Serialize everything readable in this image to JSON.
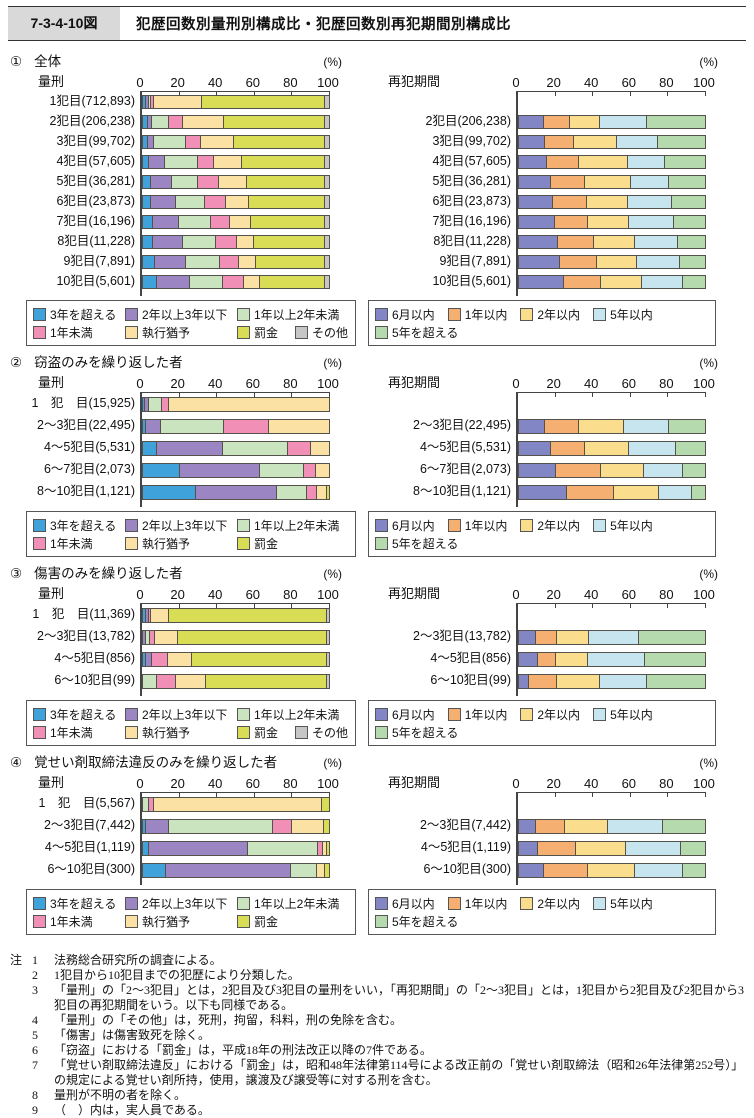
{
  "header": {
    "fig_no": "7-3-4-10図",
    "title": "犯歴回数別量刑別構成比・犯歴回数別再犯期間別構成比"
  },
  "palette": {
    "segment_border": "#54524a",
    "axis": "#444444"
  },
  "chart_data": [
    {
      "section": "①",
      "section_title": "全体",
      "panel": "量刑",
      "type": "bar",
      "stacked": true,
      "orientation": "horizontal",
      "unit": "(%)",
      "xlim": [
        0,
        100
      ],
      "ticks": [
        "0",
        "20",
        "40",
        "60",
        "80",
        "100"
      ],
      "lead_blank_rows": 0,
      "series": [
        "3年を超える",
        "2年以上3年以下",
        "1年以上2年未満",
        "1年未満",
        "執行猶予",
        "罰金",
        "その他"
      ],
      "colors": [
        "#3fa2db",
        "#9b85c2",
        "#cbe4c0",
        "#f18fb7",
        "#fbe1a3",
        "#d8dd55",
        "#c6c6c6"
      ],
      "categories": [
        {
          "label": "1犯目",
          "count": "(712,893)",
          "values": [
            1,
            1,
            1,
            1,
            26,
            68,
            2
          ]
        },
        {
          "label": "2犯目",
          "count": "(206,238)",
          "values": [
            2,
            2,
            9,
            7,
            22,
            56,
            2
          ]
        },
        {
          "label": "3犯目",
          "count": "(99,702)",
          "values": [
            2,
            3,
            17,
            8,
            18,
            50,
            2
          ]
        },
        {
          "label": "4犯目",
          "count": "(57,605)",
          "values": [
            3,
            8,
            18,
            8,
            15,
            46,
            2
          ]
        },
        {
          "label": "5犯目",
          "count": "(36,281)",
          "values": [
            4,
            11,
            14,
            11,
            15,
            43,
            2
          ]
        },
        {
          "label": "6犯目",
          "count": "(23,873)",
          "values": [
            4,
            13,
            16,
            11,
            12,
            42,
            2
          ]
        },
        {
          "label": "7犯目",
          "count": "(16,196)",
          "values": [
            5,
            14,
            17,
            10,
            11,
            41,
            2
          ]
        },
        {
          "label": "8犯目",
          "count": "(11,228)",
          "values": [
            5,
            16,
            18,
            11,
            9,
            39,
            2
          ]
        },
        {
          "label": "9犯目",
          "count": "(7,891)",
          "values": [
            6,
            17,
            18,
            10,
            9,
            38,
            2
          ]
        },
        {
          "label": "10犯目",
          "count": "(5,601)",
          "values": [
            7,
            18,
            18,
            11,
            8,
            36,
            2
          ]
        }
      ]
    },
    {
      "section": "①",
      "section_title": "全体",
      "panel": "再犯期間",
      "type": "bar",
      "stacked": true,
      "orientation": "horizontal",
      "unit": "(%)",
      "xlim": [
        0,
        100
      ],
      "ticks": [
        "0",
        "20",
        "40",
        "60",
        "80",
        "100"
      ],
      "lead_blank_rows": 1,
      "series": [
        "6月以内",
        "1年以内",
        "2年以内",
        "5年以内",
        "5年を超える"
      ],
      "colors": [
        "#8286c5",
        "#f4af71",
        "#fbdd8e",
        "#c7e5ef",
        "#b5daad"
      ],
      "categories": [
        {
          "label": "2犯目",
          "count": "(206,238)",
          "values": [
            13,
            14,
            16,
            25,
            32
          ]
        },
        {
          "label": "3犯目",
          "count": "(99,702)",
          "values": [
            14,
            15,
            23,
            22,
            26
          ]
        },
        {
          "label": "4犯目",
          "count": "(57,605)",
          "values": [
            15,
            17,
            26,
            20,
            22
          ]
        },
        {
          "label": "5犯目",
          "count": "(36,281)",
          "values": [
            17,
            18,
            25,
            20,
            20
          ]
        },
        {
          "label": "6犯目",
          "count": "(23,873)",
          "values": [
            18,
            18,
            22,
            24,
            18
          ]
        },
        {
          "label": "7犯目",
          "count": "(16,196)",
          "values": [
            19,
            18,
            22,
            24,
            17
          ]
        },
        {
          "label": "8犯目",
          "count": "(11,228)",
          "values": [
            21,
            19,
            22,
            23,
            15
          ]
        },
        {
          "label": "9犯目",
          "count": "(7,891)",
          "values": [
            22,
            20,
            21,
            23,
            14
          ]
        },
        {
          "label": "10犯目",
          "count": "(5,601)",
          "values": [
            24,
            20,
            22,
            22,
            12
          ]
        }
      ]
    },
    {
      "section": "②",
      "section_title": "窃盗のみを繰り返した者",
      "panel": "量刑",
      "type": "bar",
      "stacked": true,
      "orientation": "horizontal",
      "unit": "(%)",
      "xlim": [
        0,
        100
      ],
      "ticks": [
        "0",
        "20",
        "40",
        "60",
        "80",
        "100"
      ],
      "lead_blank_rows": 0,
      "series": [
        "3年を超える",
        "2年以上3年以下",
        "1年以上2年未満",
        "1年未満",
        "執行猶予",
        "罰金"
      ],
      "colors": [
        "#3fa2db",
        "#9b85c2",
        "#cbe4c0",
        "#f18fb7",
        "#fbe1a3",
        "#d8dd55"
      ],
      "categories": [
        {
          "label": "1　犯　目",
          "count": "(15,925)",
          "values": [
            0.5,
            1.5,
            7,
            3,
            88,
            0
          ]
        },
        {
          "label": "2～3犯目",
          "count": "(22,495)",
          "values": [
            1,
            8,
            34,
            24,
            33,
            0
          ]
        },
        {
          "label": "4～5犯目",
          "count": "(5,531)",
          "values": [
            7,
            36,
            35,
            12,
            10,
            0
          ]
        },
        {
          "label": "6～7犯目",
          "count": "(2,073)",
          "values": [
            20,
            43,
            24,
            6,
            7,
            0
          ]
        },
        {
          "label": "8～10犯目",
          "count": "(1,121)",
          "values": [
            29,
            44,
            16,
            5,
            5,
            1
          ]
        }
      ]
    },
    {
      "section": "②",
      "section_title": "窃盗のみを繰り返した者",
      "panel": "再犯期間",
      "type": "bar",
      "stacked": true,
      "orientation": "horizontal",
      "unit": "(%)",
      "xlim": [
        0,
        100
      ],
      "ticks": [
        "0",
        "20",
        "40",
        "60",
        "80",
        "100"
      ],
      "lead_blank_rows": 1,
      "series": [
        "6月以内",
        "1年以内",
        "2年以内",
        "5年以内",
        "5年を超える"
      ],
      "colors": [
        "#8286c5",
        "#f4af71",
        "#fbdd8e",
        "#c7e5ef",
        "#b5daad"
      ],
      "categories": [
        {
          "label": "2～3犯目",
          "count": "(22,495)",
          "values": [
            14,
            18,
            24,
            24,
            20
          ]
        },
        {
          "label": "4～5犯目",
          "count": "(5,531)",
          "values": [
            17,
            18,
            24,
            25,
            16
          ]
        },
        {
          "label": "6～7犯目",
          "count": "(2,073)",
          "values": [
            20,
            24,
            23,
            21,
            12
          ]
        },
        {
          "label": "8～10犯目",
          "count": "(1,121)",
          "values": [
            26,
            25,
            24,
            18,
            7
          ]
        }
      ]
    },
    {
      "section": "③",
      "section_title": "傷害のみを繰り返した者",
      "panel": "量刑",
      "type": "bar",
      "stacked": true,
      "orientation": "horizontal",
      "unit": "(%)",
      "xlim": [
        0,
        100
      ],
      "ticks": [
        "0",
        "20",
        "40",
        "60",
        "80",
        "100"
      ],
      "lead_blank_rows": 0,
      "series": [
        "3年を超える",
        "2年以上3年以下",
        "1年以上2年未満",
        "1年未満",
        "執行猶予",
        "罰金",
        "その他"
      ],
      "colors": [
        "#3fa2db",
        "#9b85c2",
        "#cbe4c0",
        "#f18fb7",
        "#fbe1a3",
        "#d8dd55",
        "#c6c6c6"
      ],
      "categories": [
        {
          "label": "1　犯　目",
          "count": "(11,369)",
          "values": [
            1,
            1,
            0,
            1,
            9,
            87,
            1
          ]
        },
        {
          "label": "2～3犯目",
          "count": "(13,782)",
          "values": [
            0,
            1,
            2,
            2,
            12,
            82,
            1
          ]
        },
        {
          "label": "4～5犯目",
          "count": "(856)",
          "values": [
            1,
            3,
            0,
            8,
            13,
            74,
            1
          ]
        },
        {
          "label": "6～10犯目",
          "count": "(99)",
          "values": [
            0,
            0,
            7,
            10,
            16,
            66,
            1
          ]
        }
      ]
    },
    {
      "section": "③",
      "section_title": "傷害のみを繰り返した者",
      "panel": "再犯期間",
      "type": "bar",
      "stacked": true,
      "orientation": "horizontal",
      "unit": "(%)",
      "xlim": [
        0,
        100
      ],
      "ticks": [
        "0",
        "20",
        "40",
        "60",
        "80",
        "100"
      ],
      "lead_blank_rows": 1,
      "series": [
        "6月以内",
        "1年以内",
        "2年以内",
        "5年以内",
        "5年を超える"
      ],
      "colors": [
        "#8286c5",
        "#f4af71",
        "#fbdd8e",
        "#c7e5ef",
        "#b5daad"
      ],
      "categories": [
        {
          "label": "2～3犯目",
          "count": "(13,782)",
          "values": [
            9,
            11,
            17,
            27,
            36
          ]
        },
        {
          "label": "4～5犯目",
          "count": "(856)",
          "values": [
            10,
            9,
            17,
            31,
            33
          ]
        },
        {
          "label": "6～10犯目",
          "count": "(99)",
          "values": [
            5,
            15,
            23,
            25,
            32
          ]
        }
      ]
    },
    {
      "section": "④",
      "section_title": "覚せい剤取締法違反のみを繰り返した者",
      "panel": "量刑",
      "type": "bar",
      "stacked": true,
      "orientation": "horizontal",
      "unit": "(%)",
      "xlim": [
        0,
        100
      ],
      "ticks": [
        "0",
        "20",
        "40",
        "60",
        "80",
        "100"
      ],
      "lead_blank_rows": 0,
      "series": [
        "3年を超える",
        "2年以上3年以下",
        "1年以上2年未満",
        "1年未満",
        "執行猶予",
        "罰金"
      ],
      "colors": [
        "#3fa2db",
        "#9b85c2",
        "#cbe4c0",
        "#f18fb7",
        "#fbe1a3",
        "#d8dd55"
      ],
      "categories": [
        {
          "label": "1　犯　目",
          "count": "(5,567)",
          "values": [
            0,
            0,
            3,
            2,
            91,
            4
          ]
        },
        {
          "label": "2～3犯目",
          "count": "(7,442)",
          "values": [
            1,
            12,
            57,
            10,
            17,
            3
          ]
        },
        {
          "label": "4～5犯目",
          "count": "(1,119)",
          "values": [
            3,
            54,
            38,
            2,
            2,
            1
          ]
        },
        {
          "label": "6～10犯目",
          "count": "(300)",
          "values": [
            12,
            68,
            14,
            0,
            4,
            2
          ]
        }
      ]
    },
    {
      "section": "④",
      "section_title": "覚せい剤取締法違反のみを繰り返した者",
      "panel": "再犯期間",
      "type": "bar",
      "stacked": true,
      "orientation": "horizontal",
      "unit": "(%)",
      "xlim": [
        0,
        100
      ],
      "ticks": [
        "0",
        "20",
        "40",
        "60",
        "80",
        "100"
      ],
      "lead_blank_rows": 1,
      "series": [
        "6月以内",
        "1年以内",
        "2年以内",
        "5年以内",
        "5年を超える"
      ],
      "colors": [
        "#8286c5",
        "#f4af71",
        "#fbdd8e",
        "#c7e5ef",
        "#b5daad"
      ],
      "categories": [
        {
          "label": "2～3犯目",
          "count": "(7,442)",
          "values": [
            9,
            15,
            23,
            30,
            23
          ]
        },
        {
          "label": "4～5犯目",
          "count": "(1,119)",
          "values": [
            10,
            20,
            27,
            30,
            13
          ]
        },
        {
          "label": "6～10犯目",
          "count": "(300)",
          "values": [
            13,
            24,
            25,
            26,
            12
          ]
        }
      ]
    }
  ],
  "notes": {
    "prefix": "注",
    "items": [
      {
        "no": "1",
        "text": "法務総合研究所の調査による。"
      },
      {
        "no": "2",
        "text": "1犯目から10犯目までの犯歴により分類した。"
      },
      {
        "no": "3",
        "text": "「量刑」の「2～3犯目」とは，2犯目及び3犯目の量刑をいい，「再犯期間」の「2～3犯目」とは，1犯目から2犯目及び2犯目から3犯目の再犯期間をいう。以下も同様である。"
      },
      {
        "no": "4",
        "text": "「量刑」の「その他」は，死刑，拘留，科料，刑の免除を含む。"
      },
      {
        "no": "5",
        "text": "「傷害」は傷害致死を除く。"
      },
      {
        "no": "6",
        "text": "「窃盗」における「罰金」は，平成18年の刑法改正以降の7件である。"
      },
      {
        "no": "7",
        "text": "「覚せい剤取締法違反」における「罰金」は，昭和48年法律第114号による改正前の「覚せい剤取締法（昭和26年法律第252号）」の規定による覚せい剤所持，使用，譲渡及び譲受等に対する刑を含む。"
      },
      {
        "no": "8",
        "text": "量刑が不明の者を除く。"
      },
      {
        "no": "9",
        "text": "（　）内は，実人員である。"
      }
    ]
  }
}
